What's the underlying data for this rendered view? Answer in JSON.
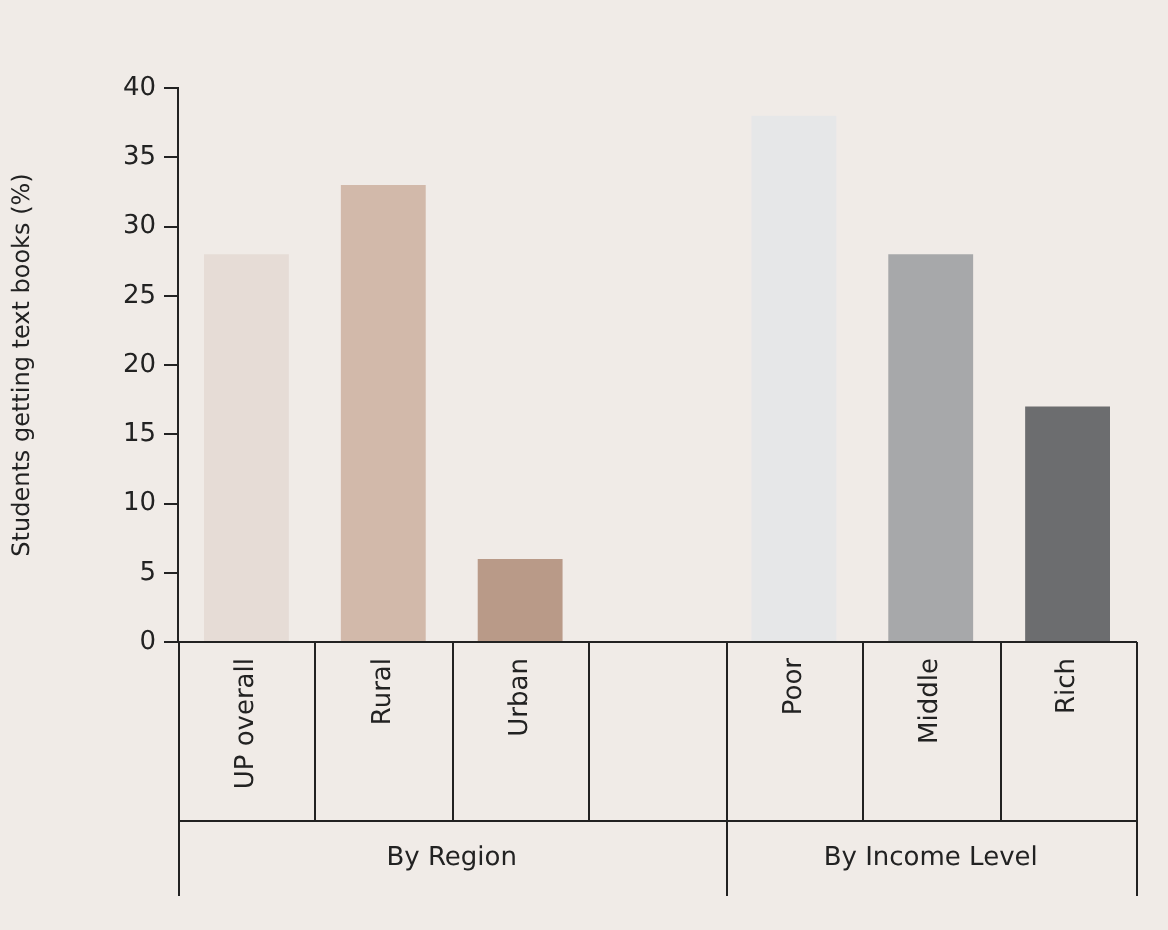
{
  "chart_data": {
    "type": "bar",
    "ylabel": "Students getting text books (%)",
    "categories": [
      "UP overall",
      "Rural",
      "Urban",
      null,
      "Poor",
      "Middle",
      "Rich"
    ],
    "values": [
      28,
      33,
      6,
      null,
      38,
      28,
      17
    ],
    "colors": [
      "#e6dcd6",
      "#d2b9aa",
      "#b99a88",
      null,
      "#e6e7e8",
      "#a7a8aa",
      "#6c6d6f"
    ],
    "ylim": [
      0,
      40
    ],
    "yticks": [
      0,
      5,
      10,
      15,
      20,
      25,
      30,
      35,
      40
    ],
    "grid": false,
    "legend": false,
    "annotations": [
      "By Region",
      "By Income Level"
    ]
  }
}
